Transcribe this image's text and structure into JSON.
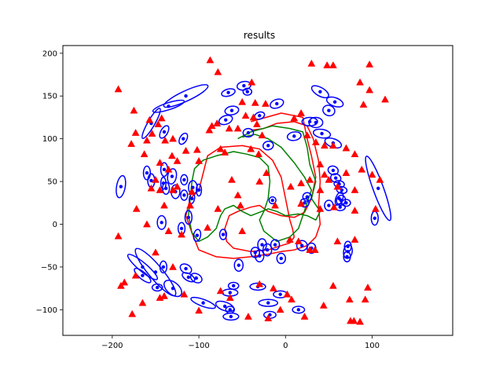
{
  "chart_data": {
    "type": "scatter",
    "title": "results",
    "xlabel": "",
    "ylabel": "",
    "xlim": [
      -257,
      193
    ],
    "ylim": [
      -130,
      209
    ],
    "xticks": [
      -200,
      -100,
      0,
      100
    ],
    "yticks": [
      -100,
      -50,
      0,
      50,
      100,
      150,
      200
    ],
    "grid": false,
    "colors": {
      "landmarks": "#ff0000",
      "ellipses": "#0000ff",
      "path_a": "#ff0000",
      "path_b": "#008000"
    },
    "landmarks": [
      [
        -87,
        192
      ],
      [
        -78,
        178
      ],
      [
        30,
        188
      ],
      [
        48,
        186
      ],
      [
        55,
        186
      ],
      [
        97,
        187
      ],
      [
        -39,
        166
      ],
      [
        86,
        166
      ],
      [
        -193,
        158
      ],
      [
        97,
        157
      ],
      [
        -175,
        133
      ],
      [
        -143,
        124
      ],
      [
        -147,
        117
      ],
      [
        -35,
        142
      ],
      [
        -23,
        141
      ],
      [
        18,
        130
      ],
      [
        90,
        140
      ],
      [
        115,
        146
      ],
      [
        -173,
        107
      ],
      [
        -157,
        122
      ],
      [
        -154,
        106
      ],
      [
        -130,
        100
      ],
      [
        -85,
        115
      ],
      [
        -79,
        118
      ],
      [
        -88,
        110
      ],
      [
        -65,
        112
      ],
      [
        -55,
        112
      ],
      [
        -46,
        127
      ],
      [
        -37,
        125
      ],
      [
        -50,
        143
      ],
      [
        -33,
        117
      ],
      [
        -27,
        104
      ],
      [
        10,
        124
      ],
      [
        -178,
        94
      ],
      [
        -160,
        98
      ],
      [
        -139,
        98
      ],
      [
        -115,
        86
      ],
      [
        -102,
        87
      ],
      [
        -75,
        88
      ],
      [
        -70,
        84
      ],
      [
        -40,
        88
      ],
      [
        -31,
        82
      ],
      [
        25,
        104
      ],
      [
        35,
        96
      ],
      [
        45,
        92
      ],
      [
        55,
        92
      ],
      [
        70,
        89
      ],
      [
        80,
        82
      ],
      [
        -163,
        82
      ],
      [
        -131,
        80
      ],
      [
        -125,
        74
      ],
      [
        -145,
        72
      ],
      [
        -100,
        74
      ],
      [
        40,
        70
      ],
      [
        45,
        58
      ],
      [
        50,
        52
      ],
      [
        70,
        60
      ],
      [
        88,
        64
      ],
      [
        100,
        58
      ],
      [
        109,
        52
      ],
      [
        -150,
        52
      ],
      [
        -135,
        64
      ],
      [
        -125,
        44
      ],
      [
        -108,
        38
      ],
      [
        -62,
        52
      ],
      [
        -55,
        34
      ],
      [
        -30,
        50
      ],
      [
        -22,
        60
      ],
      [
        6,
        44
      ],
      [
        18,
        48
      ],
      [
        28,
        52
      ],
      [
        40,
        40
      ],
      [
        60,
        44
      ],
      [
        80,
        40
      ],
      [
        -155,
        42
      ],
      [
        -145,
        40
      ],
      [
        -130,
        40
      ],
      [
        -172,
        18
      ],
      [
        -140,
        22
      ],
      [
        -110,
        22
      ],
      [
        -78,
        18
      ],
      [
        -52,
        22
      ],
      [
        -12,
        22
      ],
      [
        18,
        24
      ],
      [
        40,
        18
      ],
      [
        56,
        20
      ],
      [
        80,
        16
      ],
      [
        104,
        18
      ],
      [
        -160,
        0
      ],
      [
        -135,
        -8
      ],
      [
        -120,
        -12
      ],
      [
        -90,
        -4
      ],
      [
        -50,
        -8
      ],
      [
        5,
        -18
      ],
      [
        15,
        -20
      ],
      [
        28,
        -30
      ],
      [
        34,
        -30
      ],
      [
        60,
        -20
      ],
      [
        80,
        -18
      ],
      [
        -193,
        -14
      ],
      [
        -150,
        -33
      ],
      [
        -130,
        -50
      ],
      [
        -173,
        -60
      ],
      [
        -190,
        -72
      ],
      [
        -186,
        -68
      ],
      [
        -165,
        -92
      ],
      [
        -145,
        -86
      ],
      [
        -140,
        -84
      ],
      [
        -117,
        -82
      ],
      [
        -100,
        -101
      ],
      [
        -75,
        -78
      ],
      [
        -64,
        -86
      ],
      [
        -43,
        -108
      ],
      [
        -20,
        -110
      ],
      [
        -6,
        -100
      ],
      [
        22,
        -108
      ],
      [
        -30,
        -70
      ],
      [
        -14,
        -75
      ],
      [
        2,
        -82
      ],
      [
        7,
        -88
      ],
      [
        44,
        -95
      ],
      [
        55,
        -72
      ],
      [
        74,
        -88
      ],
      [
        92,
        -88
      ],
      [
        95,
        -74
      ],
      [
        -177,
        -105
      ],
      [
        79,
        -113
      ],
      [
        86,
        -114
      ],
      [
        75,
        -113
      ]
    ],
    "ellipses": [
      [
        -115,
        150,
        28,
        6,
        25
      ],
      [
        -135,
        138,
        19,
        4,
        18
      ],
      [
        -155,
        118,
        20,
        4,
        60
      ],
      [
        -140,
        108,
        8,
        4,
        60
      ],
      [
        -118,
        100,
        7,
        4,
        60
      ],
      [
        -69,
        122,
        8,
        5,
        20
      ],
      [
        -30,
        127,
        6,
        4,
        20
      ],
      [
        -62,
        133,
        8,
        5,
        10
      ],
      [
        -10,
        141,
        8,
        5,
        20
      ],
      [
        -44,
        155,
        5,
        4,
        0
      ],
      [
        -66,
        154,
        8,
        4,
        15
      ],
      [
        -48,
        162,
        8,
        5,
        10
      ],
      [
        -43,
        107,
        6,
        5,
        0
      ],
      [
        -20,
        92,
        6,
        5,
        10
      ],
      [
        40,
        155,
        11,
        5,
        -30
      ],
      [
        50,
        133,
        7,
        6,
        -20
      ],
      [
        57,
        143,
        10,
        5,
        -20
      ],
      [
        35,
        119,
        8,
        6,
        0
      ],
      [
        10,
        103,
        8,
        5,
        10
      ],
      [
        28,
        120,
        9,
        5,
        0
      ],
      [
        42,
        106,
        10,
        5,
        -10
      ],
      [
        55,
        95,
        10,
        5,
        -20
      ],
      [
        -190,
        44,
        5,
        13,
        -10
      ],
      [
        -140,
        64,
        4,
        8,
        0
      ],
      [
        -131,
        56,
        5,
        9,
        -10
      ],
      [
        -141,
        48,
        3,
        7,
        0
      ],
      [
        -138,
        42,
        4,
        7,
        0
      ],
      [
        -127,
        38,
        5,
        8,
        0
      ],
      [
        -117,
        52,
        4,
        6,
        0
      ],
      [
        -100,
        40,
        3,
        7,
        0
      ],
      [
        -160,
        60,
        4,
        8,
        0
      ],
      [
        -155,
        51,
        4,
        8,
        0
      ],
      [
        -117,
        34,
        4,
        6,
        0
      ],
      [
        -107,
        43,
        5,
        8,
        0
      ],
      [
        -108,
        30,
        3,
        6,
        -10
      ],
      [
        55,
        63,
        6,
        5,
        -20
      ],
      [
        58,
        54,
        6,
        5,
        -20
      ],
      [
        62,
        47,
        6,
        4,
        -10
      ],
      [
        65,
        40,
        6,
        4,
        -10
      ],
      [
        64,
        28,
        5,
        6,
        -20
      ],
      [
        70,
        25,
        5,
        4,
        0
      ],
      [
        62,
        30,
        4,
        8,
        -20
      ],
      [
        -15,
        28,
        4,
        4,
        0
      ],
      [
        25,
        32,
        5,
        5,
        0
      ],
      [
        22,
        25,
        5,
        5,
        0
      ],
      [
        50,
        22,
        5,
        6,
        0
      ],
      [
        63,
        20,
        6,
        4,
        0
      ],
      [
        107,
        42,
        6,
        40,
        20
      ],
      [
        -112,
        8,
        4,
        8,
        0
      ],
      [
        -143,
        2,
        5,
        8,
        0
      ],
      [
        -120,
        -5,
        4,
        7,
        0
      ],
      [
        -102,
        -13,
        4,
        7,
        -10
      ],
      [
        103,
        7,
        4,
        8,
        0
      ],
      [
        -72,
        -12,
        4,
        6,
        0
      ],
      [
        -21,
        -30,
        5,
        7,
        0
      ],
      [
        -27,
        -24,
        5,
        7,
        0
      ],
      [
        -35,
        -33,
        5,
        6,
        0
      ],
      [
        -30,
        -37,
        5,
        7,
        0
      ],
      [
        -54,
        -48,
        5,
        7,
        0
      ],
      [
        -115,
        -52,
        7,
        5,
        -30
      ],
      [
        -141,
        -50,
        4,
        7,
        0
      ],
      [
        -112,
        -62,
        8,
        4,
        -30
      ],
      [
        -103,
        -63,
        7,
        5,
        -30
      ],
      [
        -150,
        -56,
        35,
        8,
        -50
      ],
      [
        -165,
        -50,
        22,
        5,
        -40
      ],
      [
        -130,
        -75,
        12,
        7,
        -40
      ],
      [
        -95,
        -92,
        15,
        4,
        -20
      ],
      [
        -70,
        -96,
        11,
        5,
        -20
      ],
      [
        -64,
        -80,
        9,
        4,
        0
      ],
      [
        -60,
        -72,
        6,
        4,
        0
      ],
      [
        -32,
        -73,
        9,
        4,
        0
      ],
      [
        -20,
        -92,
        11,
        4,
        0
      ],
      [
        -6,
        -82,
        8,
        4,
        0
      ],
      [
        15,
        -100,
        7,
        4,
        0
      ],
      [
        -63,
        -108,
        9,
        4,
        0
      ],
      [
        -64,
        -100,
        5,
        4,
        0
      ],
      [
        -18,
        -106,
        7,
        4,
        0
      ],
      [
        -12,
        -24,
        5,
        6,
        0
      ],
      [
        -5,
        -40,
        5,
        6,
        0
      ],
      [
        19,
        -25,
        6,
        6,
        0
      ],
      [
        30,
        -28,
        5,
        6,
        0
      ],
      [
        72,
        -32,
        5,
        8,
        -10
      ],
      [
        71,
        -38,
        4,
        6,
        0
      ],
      [
        72,
        -26,
        4,
        6,
        0
      ],
      [
        -148,
        -74,
        6,
        4,
        0
      ],
      [
        -165,
        -60,
        12,
        4,
        -40
      ]
    ],
    "paths": [
      {
        "color": "#ff0000",
        "points": [
          [
            -40,
            120
          ],
          [
            -5,
            130
          ],
          [
            20,
            125
          ],
          [
            25,
            100
          ],
          [
            30,
            80
          ],
          [
            35,
            55
          ],
          [
            30,
            30
          ],
          [
            22,
            14
          ],
          [
            10,
            8
          ],
          [
            -5,
            10
          ],
          [
            -20,
            15
          ],
          [
            -30,
            22
          ],
          [
            -40,
            20
          ],
          [
            -55,
            15
          ],
          [
            -65,
            10
          ],
          [
            -70,
            -5
          ],
          [
            -68,
            -20
          ],
          [
            -60,
            -28
          ],
          [
            -40,
            -32
          ],
          [
            -20,
            -30
          ],
          [
            -5,
            -25
          ],
          [
            5,
            -22
          ],
          [
            10,
            -15
          ],
          [
            8,
            -5
          ],
          [
            5,
            5
          ],
          [
            0,
            30
          ],
          [
            -5,
            55
          ],
          [
            -15,
            75
          ],
          [
            -30,
            88
          ],
          [
            -50,
            92
          ],
          [
            -75,
            90
          ],
          [
            -90,
            80
          ],
          [
            -95,
            60
          ],
          [
            -100,
            40
          ],
          [
            -110,
            30
          ],
          [
            -115,
            10
          ],
          [
            -108,
            -10
          ],
          [
            -100,
            -30
          ],
          [
            -80,
            -38
          ],
          [
            -60,
            -40
          ],
          [
            -40,
            -38
          ],
          [
            -20,
            -35
          ],
          [
            -5,
            -32
          ],
          [
            10,
            -30
          ],
          [
            25,
            -25
          ],
          [
            35,
            -15
          ],
          [
            40,
            0
          ],
          [
            38,
            20
          ],
          [
            40,
            50
          ],
          [
            38,
            75
          ],
          [
            32,
            100
          ],
          [
            25,
            115
          ],
          [
            10,
            120
          ],
          [
            -10,
            118
          ],
          [
            -25,
            112
          ],
          [
            -40,
            110
          ]
        ]
      },
      {
        "color": "#008000",
        "points": [
          [
            -55,
            100
          ],
          [
            -40,
            108
          ],
          [
            -15,
            115
          ],
          [
            5,
            112
          ],
          [
            20,
            108
          ],
          [
            25,
            90
          ],
          [
            28,
            70
          ],
          [
            35,
            50
          ],
          [
            30,
            30
          ],
          [
            40,
            15
          ],
          [
            35,
            5
          ],
          [
            25,
            10
          ],
          [
            15,
            12
          ],
          [
            0,
            10
          ],
          [
            -10,
            15
          ],
          [
            -20,
            18
          ],
          [
            -30,
            14
          ],
          [
            -40,
            10
          ],
          [
            -50,
            15
          ],
          [
            -60,
            22
          ],
          [
            -70,
            18
          ],
          [
            -75,
            10
          ],
          [
            -80,
            -5
          ],
          [
            -90,
            -15
          ],
          [
            -100,
            -20
          ],
          [
            -108,
            -10
          ],
          [
            -112,
            10
          ],
          [
            -110,
            30
          ],
          [
            -108,
            50
          ],
          [
            -105,
            65
          ],
          [
            -95,
            75
          ],
          [
            -80,
            80
          ],
          [
            -60,
            85
          ],
          [
            -45,
            82
          ],
          [
            -30,
            78
          ],
          [
            -20,
            68
          ],
          [
            -18,
            50
          ],
          [
            -20,
            30
          ],
          [
            -25,
            15
          ],
          [
            -30,
            5
          ],
          [
            -25,
            -8
          ],
          [
            -10,
            -20
          ],
          [
            5,
            -15
          ],
          [
            15,
            -5
          ],
          [
            20,
            10
          ],
          [
            25,
            25
          ],
          [
            30,
            40
          ],
          [
            22,
            55
          ],
          [
            10,
            72
          ],
          [
            -5,
            90
          ],
          [
            -20,
            100
          ],
          [
            -35,
            105
          ],
          [
            -50,
            102
          ]
        ]
      }
    ]
  }
}
